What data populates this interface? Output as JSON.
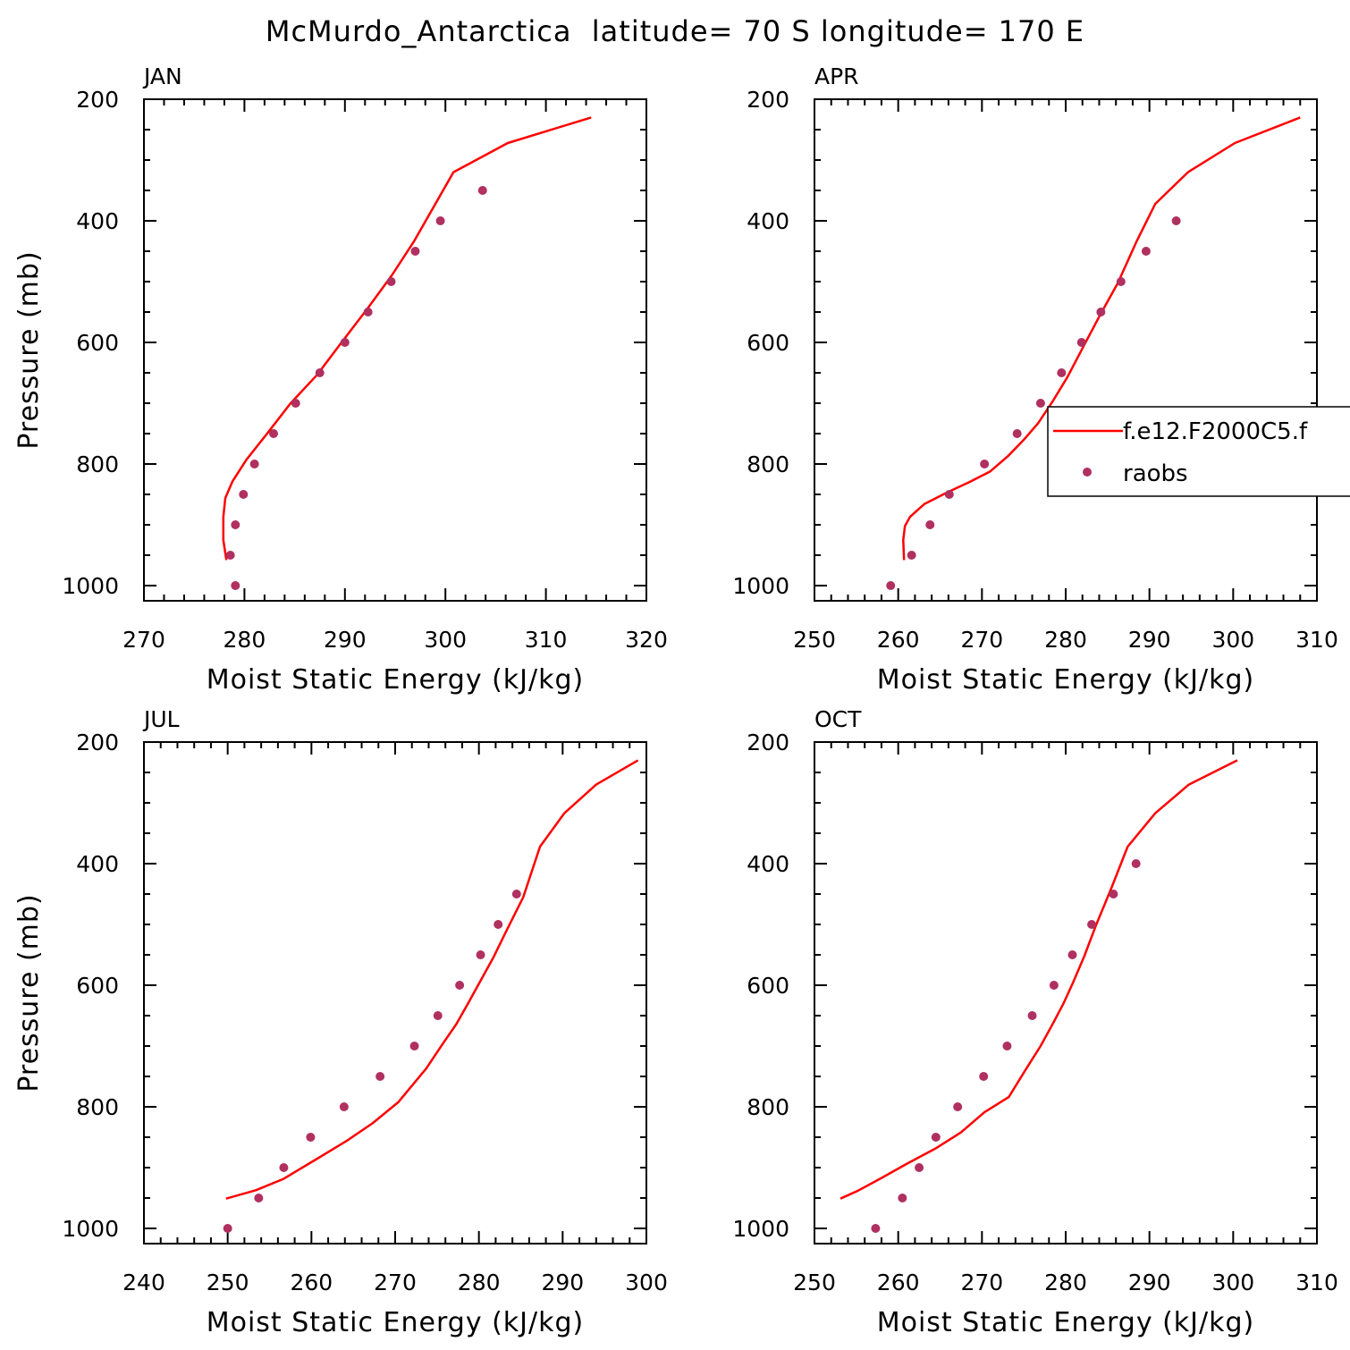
{
  "title": "McMurdo_Antarctica  latitude= 70 S longitude= 170 E",
  "colors": {
    "model_line": "#ff0000",
    "obs_marker": "#b03060",
    "axes": "#000000"
  },
  "legend": {
    "entries": [
      "f.e12.F2000C5.f",
      "raobs"
    ],
    "placement": "right-middle of APR panel"
  },
  "chart_data": [
    {
      "type": "line",
      "panel": "JAN",
      "title": "JAN",
      "xlabel": "Moist Static Energy (kJ/kg)",
      "ylabel": "Pressure (mb)",
      "xlim": [
        270,
        320
      ],
      "ylim": [
        1025,
        200
      ],
      "x_ticks": [
        270,
        280,
        290,
        300,
        310,
        320
      ],
      "y_ticks": [
        200,
        400,
        600,
        800,
        1000
      ],
      "series": [
        {
          "name": "f.e12.F2000C5.f",
          "kind": "line",
          "x": [
            278.2,
            277.9,
            277.9,
            278.1,
            278.8,
            280.2,
            282.3,
            284.6,
            287.2,
            289.8,
            292.3,
            294.7,
            296.9,
            300.8,
            306.2,
            314.5
          ],
          "y": [
            958,
            925,
            887,
            856,
            829,
            793,
            749,
            700,
            654,
            597,
            543,
            489,
            433,
            320,
            272,
            230
          ]
        },
        {
          "name": "raobs",
          "kind": "scatter",
          "x": [
            279.1,
            278.6,
            279.1,
            279.9,
            281.0,
            282.9,
            285.1,
            287.5,
            290.0,
            292.3,
            294.6,
            297.0,
            299.5,
            303.7
          ],
          "y": [
            1000,
            950,
            900,
            850,
            800,
            750,
            700,
            650,
            600,
            550,
            500,
            450,
            400,
            350
          ]
        }
      ]
    },
    {
      "type": "line",
      "panel": "APR",
      "title": "APR",
      "xlabel": "Moist Static Energy (kJ/kg)",
      "ylabel": "",
      "xlim": [
        250,
        310
      ],
      "ylim": [
        1025,
        200
      ],
      "x_ticks": [
        250,
        260,
        270,
        280,
        290,
        300,
        310
      ],
      "y_ticks": [
        200,
        400,
        600,
        800,
        1000
      ],
      "series": [
        {
          "name": "f.e12.F2000C5.f",
          "kind": "line",
          "x": [
            260.7,
            260.6,
            260.8,
            261.4,
            263.1,
            265.8,
            268.6,
            271.0,
            273.1,
            275.0,
            276.7,
            278.4,
            280.2,
            282.1,
            284.1,
            286.2,
            288.5,
            290.7,
            294.6,
            300.2,
            308.0
          ],
          "y": [
            958,
            925,
            902,
            887,
            866,
            847,
            829,
            812,
            787,
            760,
            733,
            698,
            657,
            607,
            555,
            503,
            433,
            372,
            320,
            272,
            230
          ]
        },
        {
          "name": "raobs",
          "kind": "scatter",
          "x": [
            259.1,
            261.6,
            263.8,
            266.1,
            270.3,
            274.2,
            277.0,
            279.5,
            281.9,
            284.2,
            286.6,
            289.6,
            293.2
          ],
          "y": [
            1000,
            950,
            900,
            850,
            800,
            750,
            700,
            650,
            600,
            550,
            500,
            450,
            400
          ]
        }
      ]
    },
    {
      "type": "line",
      "panel": "JUL",
      "title": "JUL",
      "xlabel": "Moist Static Energy (kJ/kg)",
      "ylabel": "Pressure (mb)",
      "xlim": [
        240,
        300
      ],
      "ylim": [
        1025,
        200
      ],
      "x_ticks": [
        240,
        250,
        260,
        270,
        280,
        290,
        300
      ],
      "y_ticks": [
        200,
        400,
        600,
        800,
        1000
      ],
      "series": [
        {
          "name": "f.e12.F2000C5.f",
          "kind": "line",
          "x": [
            249.8,
            253.4,
            256.6,
            260.6,
            264.2,
            267.3,
            270.4,
            273.7,
            275.6,
            277.3,
            278.7,
            280.1,
            281.7,
            283.3,
            285.3,
            287.3,
            290.2,
            294.0,
            299.0
          ],
          "y": [
            951,
            937,
            919,
            886,
            856,
            827,
            792,
            737,
            698,
            664,
            630,
            595,
            555,
            510,
            455,
            372,
            317,
            270,
            230
          ]
        },
        {
          "name": "raobs",
          "kind": "scatter",
          "x": [
            250.0,
            253.7,
            256.7,
            259.9,
            263.9,
            268.2,
            272.3,
            275.1,
            277.7,
            280.2,
            282.3,
            284.5
          ],
          "y": [
            1000,
            950,
            900,
            850,
            800,
            750,
            700,
            650,
            600,
            550,
            500,
            450
          ]
        }
      ]
    },
    {
      "type": "line",
      "panel": "OCT",
      "title": "OCT",
      "xlabel": "Moist Static Energy (kJ/kg)",
      "ylabel": "",
      "xlim": [
        250,
        310
      ],
      "ylim": [
        1025,
        200
      ],
      "x_ticks": [
        250,
        260,
        270,
        280,
        290,
        300,
        310
      ],
      "y_ticks": [
        200,
        400,
        600,
        800,
        1000
      ],
      "series": [
        {
          "name": "f.e12.F2000C5.f",
          "kind": "line",
          "x": [
            253.1,
            255.2,
            258.0,
            261.0,
            264.4,
            267.5,
            270.3,
            273.2,
            275.3,
            277.0,
            278.4,
            279.7,
            280.9,
            282.2,
            283.6,
            285.4,
            287.4,
            290.7,
            294.7,
            300.5
          ],
          "y": [
            951,
            938,
            917,
            894,
            869,
            842,
            809,
            784,
            737,
            700,
            665,
            631,
            595,
            553,
            502,
            442,
            372,
            317,
            270,
            230
          ]
        },
        {
          "name": "raobs",
          "kind": "scatter",
          "x": [
            257.3,
            260.5,
            262.5,
            264.5,
            267.1,
            270.2,
            273.0,
            276.0,
            278.6,
            280.8,
            283.1,
            285.7,
            288.4
          ],
          "y": [
            1000,
            950,
            900,
            850,
            800,
            750,
            700,
            650,
            600,
            550,
            500,
            450,
            400
          ]
        }
      ]
    }
  ]
}
